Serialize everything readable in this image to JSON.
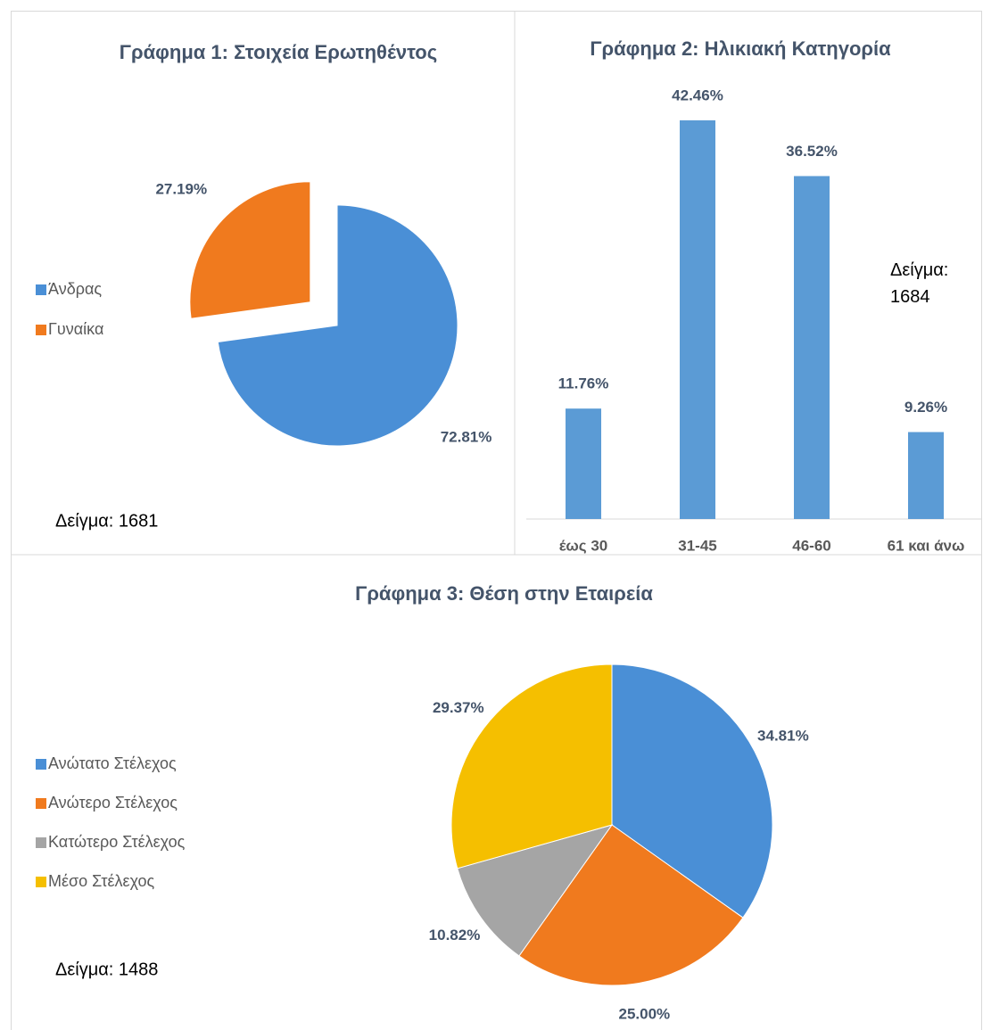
{
  "chart_data": [
    {
      "type": "pie",
      "title": "Γράφημα 1: Στοιχεία Ερωτηθέντος",
      "categories": [
        "Άνδρας",
        "Γυναίκα"
      ],
      "values": [
        72.81,
        27.19
      ],
      "value_labels": [
        "72.81%",
        "27.19%"
      ],
      "colors": [
        "#4a8fd6",
        "#f07a1e"
      ],
      "exploded": [
        false,
        true
      ],
      "legend": "left",
      "note": "Δείγμα: 1681"
    },
    {
      "type": "bar",
      "title": "Γράφημα 2: Ηλικιακή Κατηγορία",
      "categories": [
        "έως 30",
        "31-45",
        "46-60",
        "61 και άνω"
      ],
      "values": [
        11.76,
        42.46,
        36.52,
        9.26
      ],
      "value_labels": [
        "11.76%",
        "42.46%",
        "36.52%",
        "9.26%"
      ],
      "color": "#5b9bd5",
      "note": "Δείγμα: 1684"
    },
    {
      "type": "pie",
      "title": "Γράφημα 3: Θέση στην Εταιρεία",
      "categories": [
        "Ανώτατο Στέλεχος",
        "Ανώτερο Στέλεχος",
        "Κατώτερο Στέλεχος",
        "Μέσο Στέλεχος"
      ],
      "values": [
        34.81,
        25.0,
        10.82,
        29.37
      ],
      "value_labels": [
        "34.81%",
        "25.00%",
        "10.82%",
        "29.37%"
      ],
      "colors": [
        "#4a8fd6",
        "#f07a1e",
        "#a5a5a5",
        "#f5bf00"
      ],
      "legend": "left",
      "note": "Δείγμα: 1488"
    }
  ]
}
